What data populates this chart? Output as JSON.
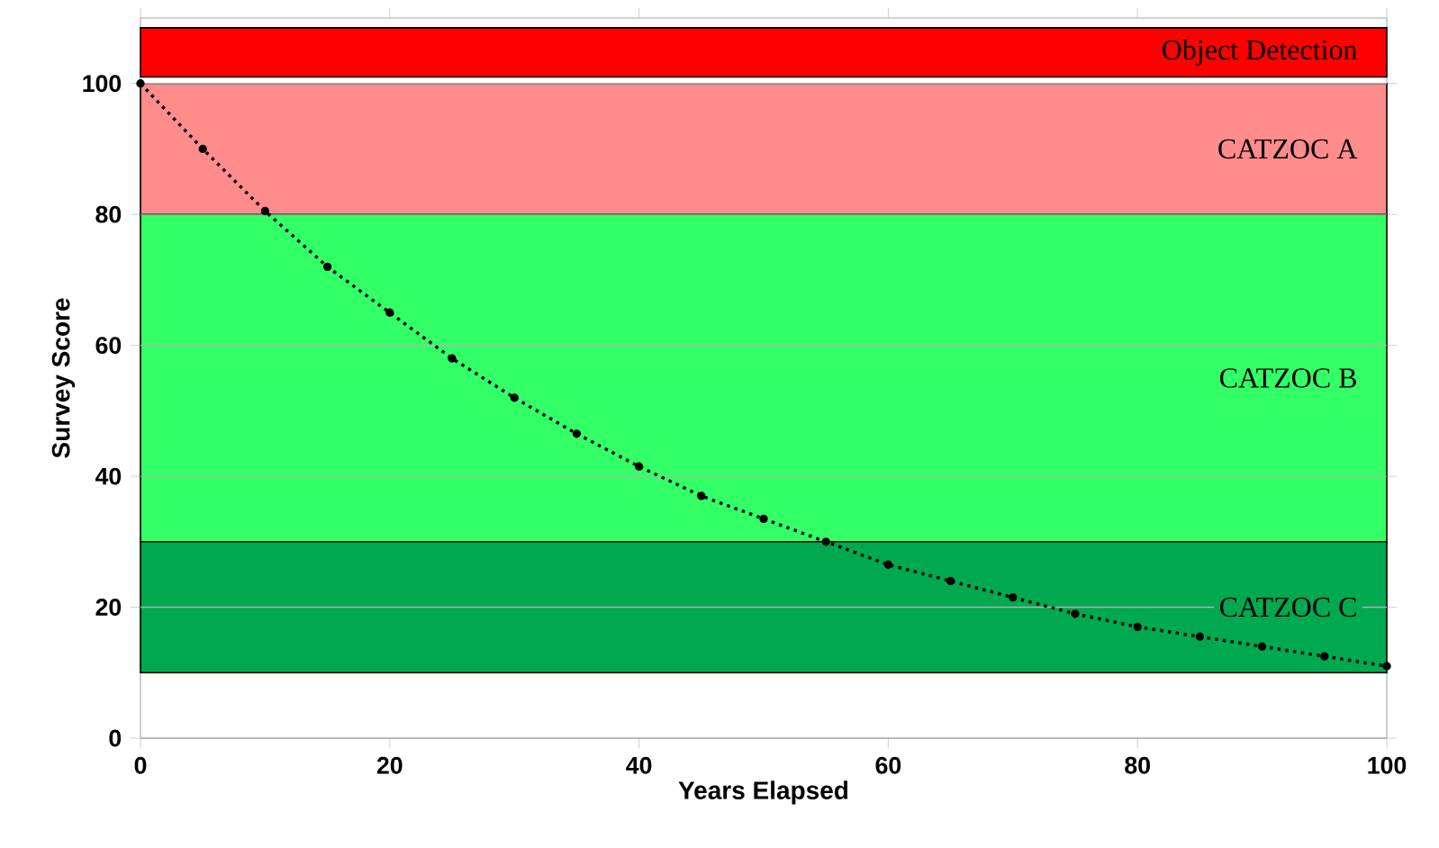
{
  "chart_data": {
    "type": "line",
    "xlabel": "Years Elapsed",
    "ylabel": "Survey Score",
    "x": [
      0,
      5,
      10,
      15,
      20,
      25,
      30,
      35,
      40,
      45,
      50,
      55,
      60,
      65,
      70,
      75,
      80,
      85,
      90,
      95,
      100
    ],
    "series": [
      {
        "color": "#000000",
        "values": [
          100,
          90,
          80.5,
          72,
          65,
          58,
          52,
          46.5,
          41.5,
          37,
          33.5,
          30,
          26.5,
          24,
          21.5,
          19,
          17,
          15.5,
          14,
          12.5,
          11
        ]
      }
    ],
    "xlim": [
      0,
      100
    ],
    "ylim": [
      0,
      110
    ],
    "xticks": [
      0,
      20,
      40,
      60,
      80,
      100
    ],
    "yticks": [
      0,
      20,
      40,
      60,
      80,
      100
    ],
    "bands": [
      {
        "axis": "y",
        "from": 101,
        "to": 108.5,
        "label": "Object Detection",
        "color": "#ff0000"
      },
      {
        "axis": "y",
        "from": 80,
        "to": 100,
        "label": "CATZOC A",
        "color": "#ff8c8c"
      },
      {
        "axis": "y",
        "from": 30,
        "to": 80,
        "label": "CATZOC B",
        "color": "#33ff66"
      },
      {
        "axis": "y",
        "from": 10,
        "to": 30,
        "label": "CATZOC C",
        "color": "#00a84f"
      }
    ],
    "grid": "y",
    "line_style": "dotted",
    "marker": "circle"
  }
}
